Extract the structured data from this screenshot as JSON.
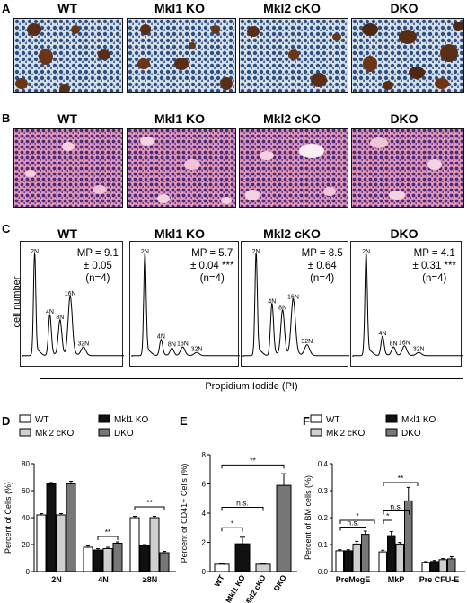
{
  "panel_labels": {
    "a": "A",
    "b": "B",
    "c": "C",
    "d": "D",
    "e": "E",
    "f": "F"
  },
  "genotypes": [
    "WT",
    "Mkl1 KO",
    "Mkl2 cKO",
    "DKO"
  ],
  "flow": {
    "ylabel": "cell number",
    "xlabel": "Propidium Iodide (PI)",
    "panels": [
      {
        "title": "WT",
        "mp_line1": "MP = 9.1",
        "mp_line2": "± 0.05",
        "mp_line3": "(n=4)",
        "sig": ""
      },
      {
        "title": "Mkl1 KO",
        "mp_line1": "MP = 5.7",
        "mp_line2": "± 0.04",
        "mp_line3": "(n=4)",
        "sig": "***"
      },
      {
        "title": "Mkl2 cKO",
        "mp_line1": "MP = 8.5",
        "mp_line2": "± 0.64",
        "mp_line3": "(n=4)",
        "sig": ""
      },
      {
        "title": "DKO",
        "mp_line1": "MP = 4.1",
        "mp_line2": "± 0.31",
        "mp_line3": "(n=4)",
        "sig": "***"
      }
    ],
    "peaks": [
      "2N",
      "4N",
      "8N",
      "16N",
      "32N"
    ],
    "peak_heights": [
      [
        0.95,
        0.38,
        0.33,
        0.55,
        0.08
      ],
      [
        0.95,
        0.15,
        0.07,
        0.08,
        0.03
      ],
      [
        0.95,
        0.48,
        0.42,
        0.52,
        0.1
      ],
      [
        0.95,
        0.18,
        0.08,
        0.09,
        0.03
      ]
    ]
  },
  "colors": {
    "wt": "#ffffff",
    "mkl1": "#111111",
    "mkl2": "#cfcfcf",
    "dko": "#777777",
    "tissue_b": "#d87aa0",
    "tissue_a": "#cfdbe8"
  },
  "chart_data": [
    {
      "type": "bar",
      "panel": "D",
      "categories": [
        "2N",
        "4N",
        "≥8N"
      ],
      "series": [
        {
          "name": "WT",
          "values": [
            42,
            18,
            40
          ]
        },
        {
          "name": "Mkl1 KO",
          "values": [
            65,
            16,
            19
          ]
        },
        {
          "name": "Mkl2 cKO",
          "values": [
            42,
            17,
            40
          ]
        },
        {
          "name": "DKO",
          "values": [
            65,
            21,
            14
          ]
        }
      ],
      "errors": [
        [
          1,
          1,
          1
        ],
        [
          1,
          1,
          1
        ],
        [
          1,
          1,
          1
        ],
        [
          2,
          1,
          1
        ]
      ],
      "ylabel": "Percent of Cells (%)",
      "ylim": [
        0,
        80
      ],
      "yticks": [
        0,
        20,
        40,
        60,
        80
      ],
      "annotations": [
        "**",
        "**"
      ],
      "legend": "top"
    },
    {
      "type": "bar",
      "panel": "E",
      "categories": [
        "WT",
        "Mkl1 KO",
        "Mkl2 cKO",
        "DKO"
      ],
      "values": [
        0.5,
        1.9,
        0.5,
        5.9
      ],
      "errors": [
        0.05,
        0.45,
        0.05,
        0.8
      ],
      "ylabel": "Percent of CD41+ Cells (%)",
      "ylim": [
        0,
        8
      ],
      "yticks": [
        0,
        2,
        4,
        6,
        8
      ],
      "annotations": [
        "*",
        "n.s.",
        "**"
      ]
    },
    {
      "type": "bar",
      "panel": "F",
      "categories": [
        "PreMegE",
        "MkP",
        "Pre CFU-E"
      ],
      "series": [
        {
          "name": "WT",
          "values": [
            0.077,
            0.073,
            0.034
          ]
        },
        {
          "name": "Mkl1 KO",
          "values": [
            0.077,
            0.133,
            0.037
          ]
        },
        {
          "name": "Mkl2 cKO",
          "values": [
            0.102,
            0.102,
            0.044
          ]
        },
        {
          "name": "DKO",
          "values": [
            0.138,
            0.262,
            0.047
          ]
        }
      ],
      "errors": [
        [
          0.004,
          0.006,
          0.003
        ],
        [
          0.004,
          0.015,
          0.004
        ],
        [
          0.01,
          0.006,
          0.004
        ],
        [
          0.012,
          0.05,
          0.008
        ]
      ],
      "ylabel": "Percent of BM cells (%)",
      "ylim": [
        0,
        0.4
      ],
      "yticks": [
        0.0,
        0.1,
        0.2,
        0.3,
        0.4
      ],
      "annotations": [
        "n.s.",
        "*",
        "n.s.",
        "*",
        "**"
      ],
      "legend": "top"
    }
  ]
}
